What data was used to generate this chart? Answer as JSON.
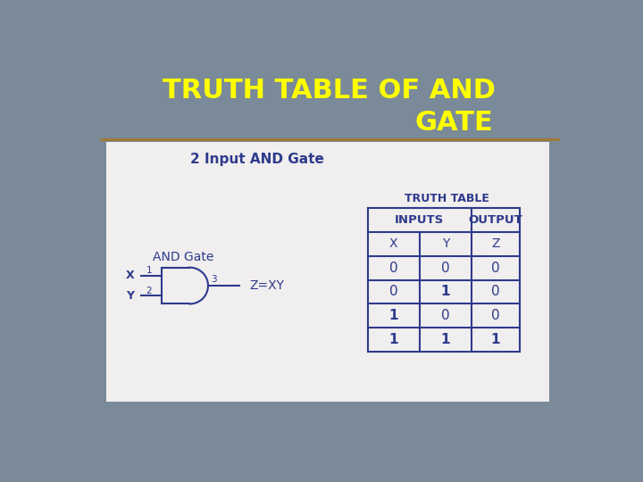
{
  "title_line1": "TRUTH TABLE OF AND",
  "title_line2": "GATE",
  "title_color": "#FFFF00",
  "bg_color": "#7a8a98",
  "divider_color": "#a07830",
  "white_box_color": "#f0eeee",
  "subtitle": "2 Input AND Gate",
  "subtitle_color": "#2e3a8c",
  "and_gate_label": "AND Gate",
  "x_label": "X",
  "y_label": "Y",
  "input1_num": "1",
  "input2_num": "2",
  "output_num": "3",
  "equation": "Z=XY",
  "truth_table_label": "TRUTH TABLE",
  "table_data": [
    [
      "0",
      "0",
      "0"
    ],
    [
      "0",
      "1",
      "0"
    ],
    [
      "1",
      "0",
      "0"
    ],
    [
      "1",
      "1",
      "1"
    ]
  ],
  "gate_color": "#2e3a8c",
  "title_fontsize": 22,
  "subtitle_fontsize": 11,
  "table_fontsize": 10
}
